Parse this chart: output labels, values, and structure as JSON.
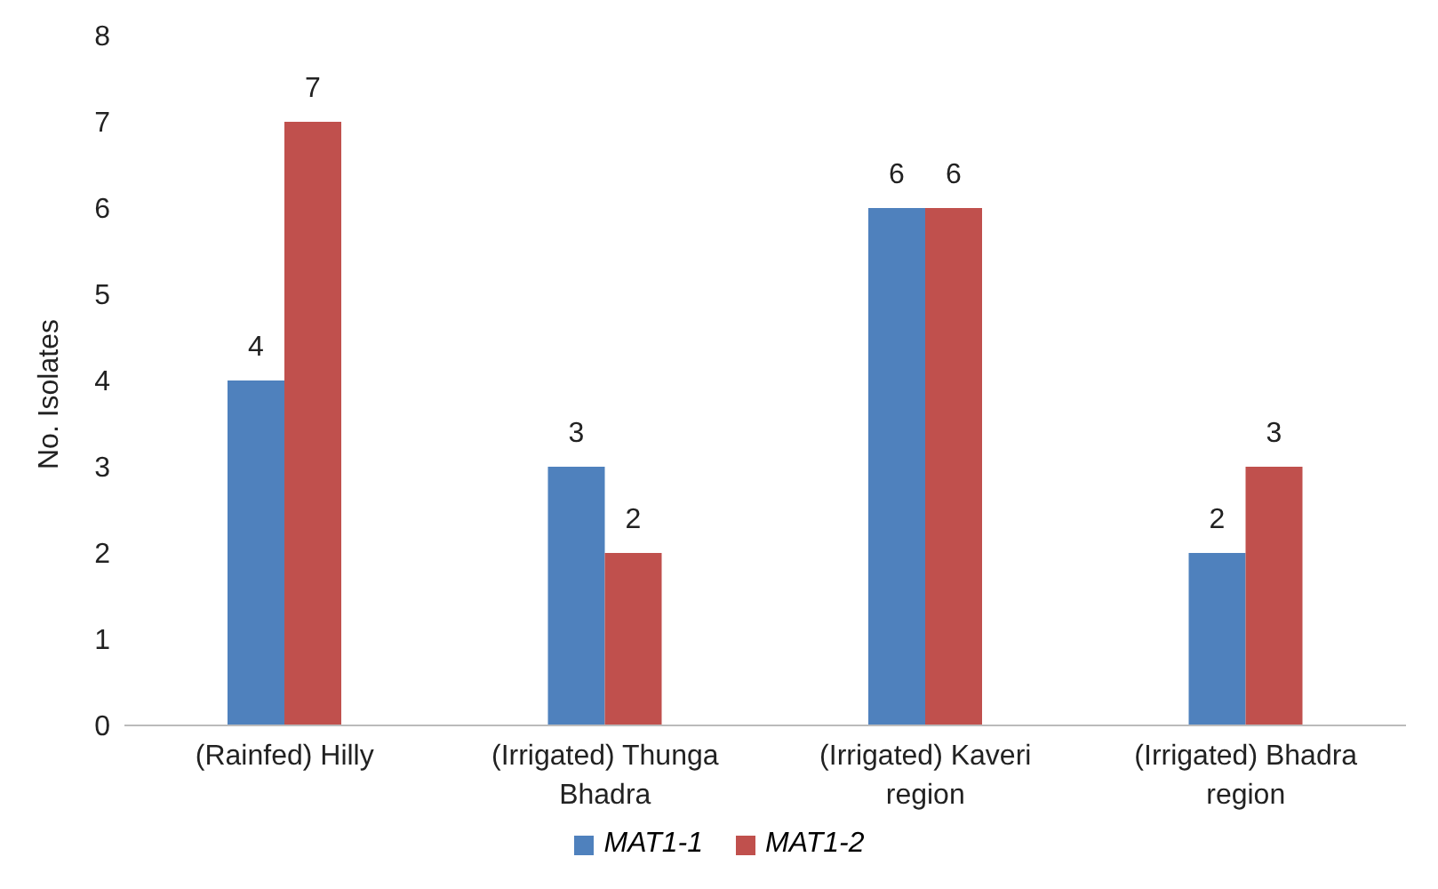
{
  "chart_data": {
    "type": "bar",
    "ylabel": "No. Isolates",
    "categories": [
      "(Rainfed) Hilly",
      "(Irrigated) Thunga Bhadra",
      "(Irrigated) Kaveri region",
      "(Irrigated) Bhadra region"
    ],
    "series": [
      {
        "name": "MAT1-1",
        "color": "#4f81bd",
        "values": [
          4,
          3,
          6,
          2
        ]
      },
      {
        "name": "MAT1-2",
        "color": "#c0504d",
        "values": [
          7,
          2,
          6,
          3
        ]
      }
    ],
    "ylim": [
      0,
      8
    ],
    "yticks": [
      0,
      1,
      2,
      3,
      4,
      5,
      6,
      7,
      8
    ],
    "grid": false,
    "legend": "bottom",
    "data_labels": true
  }
}
